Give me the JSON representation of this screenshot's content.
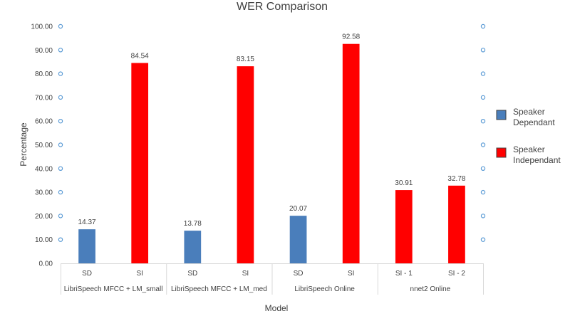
{
  "chart_data": {
    "type": "bar",
    "title": "WER Comparison",
    "xlabel": "Model",
    "ylabel": "Percentage",
    "ylim": [
      0,
      100
    ],
    "ytick_step": 10,
    "ytick_labels": [
      "0.00",
      "10.00",
      "20.00",
      "30.00",
      "40.00",
      "50.00",
      "60.00",
      "70.00",
      "80.00",
      "90.00",
      "100.00"
    ],
    "grid": false,
    "legend_position": "right",
    "groups": [
      {
        "label": "LibriSpeech MFCC + LM_small",
        "bars": [
          {
            "category": "SD",
            "series": "Speaker Dependant",
            "value": 14.37,
            "value_label": "14.37"
          },
          {
            "category": "SI",
            "series": "Speaker Independant",
            "value": 84.54,
            "value_label": "84.54"
          }
        ]
      },
      {
        "label": "LibriSpeech MFCC + LM_med",
        "bars": [
          {
            "category": "SD",
            "series": "Speaker Dependant",
            "value": 13.78,
            "value_label": "13.78"
          },
          {
            "category": "SI",
            "series": "Speaker Independant",
            "value": 83.15,
            "value_label": "83.15"
          }
        ]
      },
      {
        "label": "LibriSpeech Online",
        "bars": [
          {
            "category": "SD",
            "series": "Speaker Dependant",
            "value": 20.07,
            "value_label": "20.07"
          },
          {
            "category": "SI",
            "series": "Speaker Independant",
            "value": 92.58,
            "value_label": "92.58"
          }
        ]
      },
      {
        "label": "nnet2 Online",
        "bars": [
          {
            "category": "SI - 1",
            "series": "Speaker Independant",
            "value": 30.91,
            "value_label": "30.91"
          },
          {
            "category": "SI - 2",
            "series": "Speaker Independant",
            "value": 32.78,
            "value_label": "32.78"
          }
        ]
      }
    ],
    "series": [
      {
        "name": "Speaker Dependant",
        "name_lines": [
          "Speaker",
          "Dependant"
        ],
        "color": "#4a7ebb"
      },
      {
        "name": "Speaker Independant",
        "name_lines": [
          "Speaker",
          "Independant"
        ],
        "color": "#ff0000"
      }
    ]
  },
  "colors": {
    "axis_marker": "#5b9bd5",
    "axis_line": "#d9d9d9",
    "text": "#404040"
  }
}
